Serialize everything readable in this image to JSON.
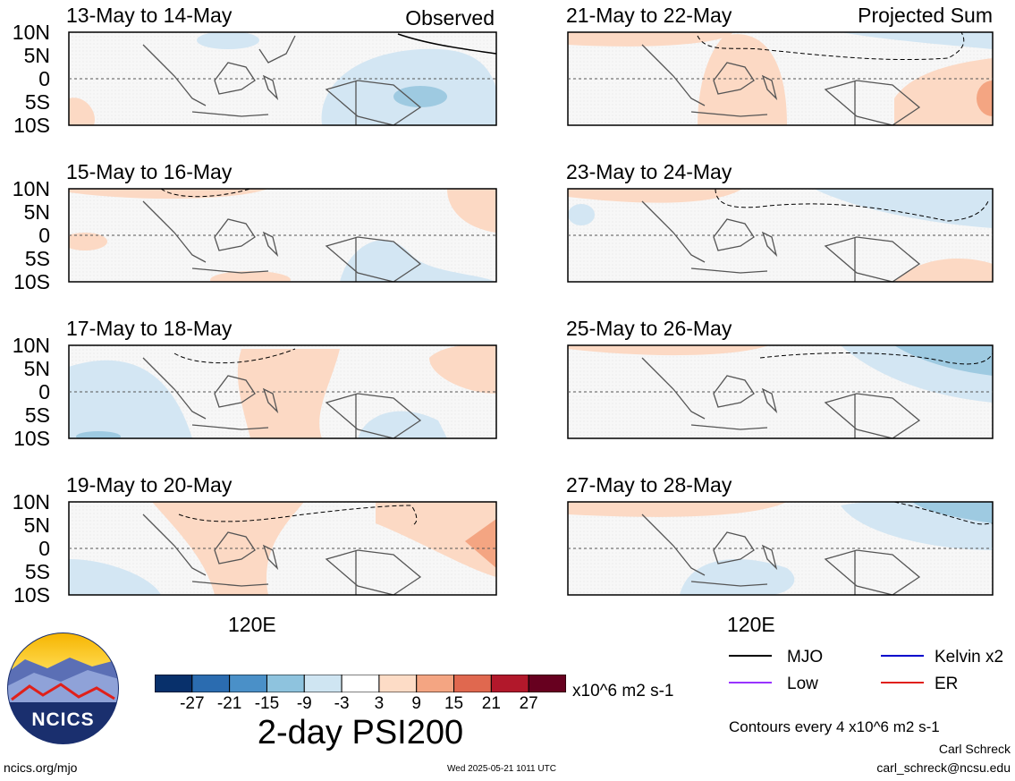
{
  "panels": [
    {
      "title": "13-May to 14-May",
      "tag": "Observed"
    },
    {
      "title": "15-May to 16-May",
      "tag": ""
    },
    {
      "title": "17-May to 18-May",
      "tag": ""
    },
    {
      "title": "19-May to 20-May",
      "tag": ""
    },
    {
      "title": "21-May to 22-May",
      "tag": "Projected Sum"
    },
    {
      "title": "23-May to 24-May",
      "tag": ""
    },
    {
      "title": "25-May to 26-May",
      "tag": ""
    },
    {
      "title": "27-May to 28-May",
      "tag": ""
    }
  ],
  "lat_labels": [
    "10N",
    "5N",
    "0",
    "5S",
    "10S"
  ],
  "lon_label": "120E",
  "colorbar": {
    "colors": [
      "#08306b",
      "#2b6cb0",
      "#4a90c8",
      "#8ec3de",
      "#cfe5f2",
      "#ffffff",
      "#fddcc6",
      "#f4a582",
      "#e0684f",
      "#b2182b",
      "#67001f"
    ],
    "tick_labels": [
      "-27",
      "-21",
      "-15",
      "-9",
      "-3",
      "3",
      "9",
      "15",
      "21",
      "27"
    ],
    "units": "x10^6 m2 s-1"
  },
  "main_title": "2-day PSI200",
  "legend": {
    "items": [
      {
        "label": "MJO",
        "color": "#000000"
      },
      {
        "label": "Kelvin x2",
        "color": "#0000cc"
      },
      {
        "label": "Low",
        "color": "#9933ff"
      },
      {
        "label": "ER",
        "color": "#e0201a"
      }
    ],
    "contour_note": "Contours every 4 x10^6 m2 s-1"
  },
  "logo_text": "NCICS",
  "footer": {
    "left_url": "ncics.org/mjo",
    "timestamp": "Wed 2025-05-21 1011 UTC",
    "author": "Carl Schreck",
    "email": "carl_schreck@ncsu.edu"
  },
  "colors": {
    "positive_light": "#fcd9c4",
    "positive_mid": "#f4a582",
    "negative_light": "#d3e6f3",
    "negative_mid": "#9ecae1"
  }
}
